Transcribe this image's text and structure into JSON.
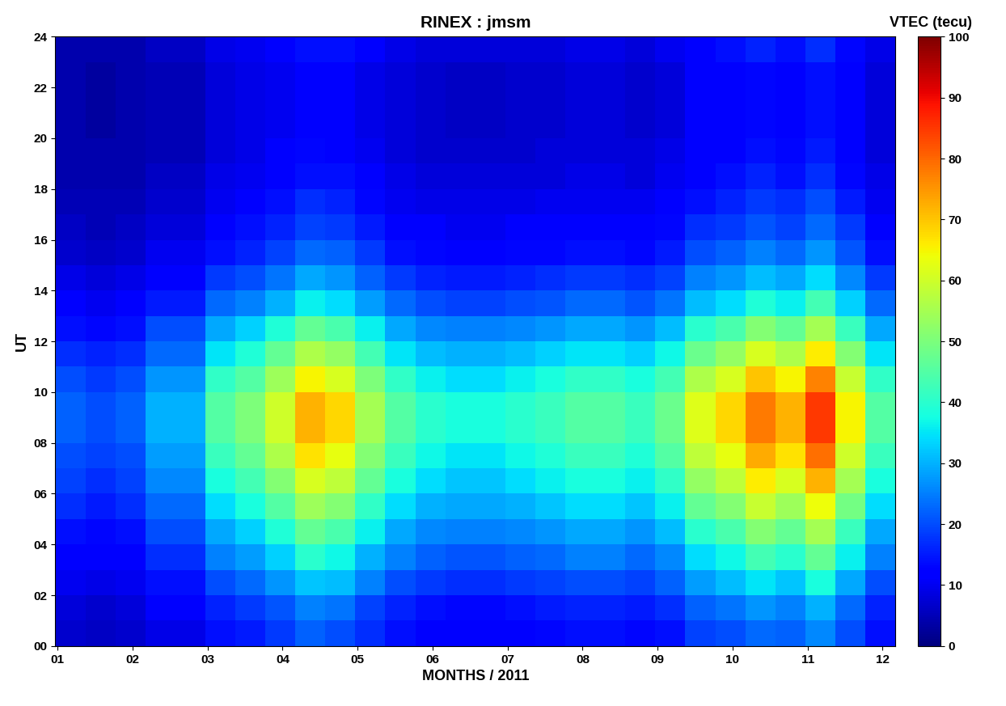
{
  "chart_data": {
    "type": "heatmap",
    "title": "RINEX : jmsm",
    "x_label": "MONTHS / 2011",
    "y_label": "UT",
    "color": "jet",
    "x_edges": [
      0.97,
      1.37,
      1.77,
      2.17,
      2.57,
      2.97,
      3.37,
      3.77,
      4.17,
      4.57,
      4.97,
      5.37,
      5.77,
      6.17,
      6.57,
      6.97,
      7.37,
      7.77,
      8.17,
      8.57,
      8.97,
      9.37,
      9.77,
      10.17,
      10.57,
      10.97,
      11.37,
      11.77,
      12.17
    ],
    "y_edges": [
      0,
      1,
      2,
      3,
      4,
      5,
      6,
      7,
      8,
      9,
      10,
      11,
      12,
      13,
      14,
      15,
      16,
      17,
      18,
      19,
      20,
      21,
      22,
      23,
      24
    ],
    "cells": [
      [
        7,
        8,
        10,
        12,
        14,
        17,
        19,
        20,
        22,
        22,
        20,
        17,
        14,
        11,
        9,
        7,
        6,
        5,
        4,
        4,
        4,
        4,
        4,
        4
      ],
      [
        6,
        7,
        9,
        11,
        13,
        15,
        17,
        19,
        20,
        20,
        18,
        16,
        13,
        10,
        8,
        6,
        5,
        5,
        4,
        4,
        3,
        3,
        3,
        4
      ],
      [
        7,
        8,
        10,
        12,
        14,
        17,
        19,
        20,
        22,
        22,
        20,
        17,
        14,
        11,
        9,
        7,
        6,
        5,
        4,
        4,
        4,
        4,
        4,
        4
      ],
      [
        9,
        11,
        14,
        17,
        20,
        23,
        26,
        28,
        30,
        30,
        27,
        23,
        20,
        15,
        12,
        10,
        8,
        7,
        6,
        5,
        5,
        5,
        5,
        6
      ],
      [
        9,
        11,
        14,
        17,
        20,
        23,
        26,
        28,
        30,
        30,
        27,
        23,
        20,
        15,
        12,
        10,
        8,
        7,
        6,
        5,
        5,
        5,
        5,
        6
      ],
      [
        14,
        16,
        20,
        25,
        29,
        34,
        38,
        42,
        45,
        45,
        41,
        35,
        29,
        23,
        18,
        14,
        12,
        10,
        9,
        8,
        8,
        8,
        8,
        9
      ],
      [
        15,
        18,
        23,
        28,
        33,
        38,
        43,
        47,
        50,
        50,
        45,
        39,
        33,
        25,
        20,
        16,
        14,
        12,
        10,
        9,
        9,
        9,
        9,
        10
      ],
      [
        18,
        21,
        27,
        33,
        39,
        45,
        51,
        56,
        60,
        60,
        54,
        47,
        39,
        30,
        24,
        19,
        16,
        14,
        12,
        11,
        10,
        10,
        10,
        12
      ],
      [
        22,
        25,
        32,
        40,
        47,
        54,
        61,
        67,
        72,
        72,
        65,
        56,
        47,
        36,
        29,
        23,
        19,
        17,
        14,
        13,
        12,
        12,
        12,
        14
      ],
      [
        20,
        24,
        31,
        37,
        44,
        51,
        58,
        63,
        68,
        68,
        61,
        53,
        44,
        34,
        27,
        22,
        18,
        16,
        14,
        12,
        12,
        12,
        12,
        14
      ],
      [
        17,
        19,
        25,
        30,
        36,
        41,
        47,
        51,
        55,
        55,
        50,
        43,
        36,
        28,
        22,
        18,
        15,
        13,
        11,
        10,
        9,
        9,
        9,
        11
      ],
      [
        14,
        16,
        20,
        25,
        29,
        34,
        38,
        42,
        45,
        45,
        41,
        35,
        29,
        23,
        18,
        14,
        12,
        10,
        9,
        8,
        8,
        8,
        8,
        9
      ],
      [
        12,
        14,
        18,
        22,
        26,
        30,
        34,
        37,
        40,
        40,
        36,
        31,
        26,
        20,
        16,
        13,
        11,
        9,
        8,
        7,
        7,
        7,
        7,
        8
      ],
      [
        11,
        13,
        17,
        21,
        25,
        29,
        32,
        35,
        38,
        38,
        34,
        30,
        25,
        19,
        15,
        12,
        10,
        9,
        8,
        7,
        6,
        6,
        6,
        8
      ],
      [
        11,
        13,
        17,
        21,
        25,
        29,
        32,
        35,
        38,
        38,
        34,
        30,
        25,
        19,
        15,
        12,
        10,
        9,
        8,
        7,
        6,
        6,
        6,
        8
      ],
      [
        12,
        14,
        18,
        22,
        26,
        30,
        34,
        37,
        40,
        40,
        36,
        31,
        26,
        20,
        16,
        13,
        11,
        9,
        8,
        7,
        7,
        7,
        7,
        8
      ],
      [
        13,
        15,
        19,
        23,
        27,
        32,
        36,
        39,
        42,
        42,
        38,
        33,
        27,
        21,
        17,
        13,
        11,
        10,
        8,
        8,
        7,
        7,
        7,
        8
      ],
      [
        14,
        16,
        20,
        25,
        29,
        34,
        38,
        42,
        45,
        45,
        41,
        35,
        29,
        23,
        18,
        14,
        12,
        10,
        9,
        8,
        8,
        8,
        8,
        9
      ],
      [
        14,
        16,
        20,
        25,
        29,
        34,
        38,
        42,
        45,
        45,
        41,
        35,
        29,
        23,
        18,
        14,
        12,
        10,
        9,
        8,
        8,
        8,
        8,
        9
      ],
      [
        13,
        15,
        19,
        23,
        27,
        32,
        36,
        39,
        42,
        42,
        38,
        33,
        27,
        21,
        17,
        13,
        11,
        10,
        8,
        8,
        7,
        7,
        7,
        8
      ],
      [
        14,
        17,
        22,
        26,
        31,
        36,
        41,
        45,
        48,
        48,
        43,
        37,
        31,
        24,
        19,
        15,
        13,
        11,
        10,
        9,
        8,
        8,
        8,
        10
      ],
      [
        19,
        22,
        28,
        34,
        40,
        47,
        53,
        58,
        62,
        62,
        56,
        48,
        40,
        31,
        25,
        20,
        17,
        14,
        12,
        11,
        11,
        11,
        11,
        12
      ],
      [
        20,
        24,
        31,
        37,
        44,
        51,
        58,
        63,
        68,
        68,
        61,
        53,
        44,
        34,
        27,
        22,
        18,
        16,
        14,
        12,
        12,
        12,
        12,
        14
      ],
      [
        23,
        27,
        35,
        43,
        51,
        59,
        66,
        73,
        78,
        78,
        70,
        61,
        51,
        39,
        31,
        25,
        21,
        18,
        16,
        14,
        13,
        13,
        13,
        16
      ],
      [
        22,
        25,
        32,
        40,
        47,
        54,
        61,
        67,
        72,
        72,
        65,
        56,
        47,
        36,
        29,
        23,
        19,
        17,
        14,
        13,
        12,
        12,
        12,
        14
      ],
      [
        26,
        30,
        38,
        47,
        55,
        64,
        72,
        79,
        85,
        85,
        77,
        66,
        55,
        43,
        34,
        27,
        23,
        20,
        17,
        15,
        14,
        14,
        14,
        17
      ],
      [
        20,
        23,
        29,
        36,
        42,
        49,
        55,
        60,
        65,
        65,
        59,
        51,
        42,
        33,
        26,
        21,
        18,
        15,
        13,
        12,
        11,
        11,
        11,
        13
      ],
      [
        14,
        16,
        20,
        25,
        29,
        34,
        38,
        42,
        45,
        45,
        41,
        35,
        29,
        23,
        18,
        14,
        12,
        10,
        9,
        8,
        8,
        8,
        8,
        9
      ]
    ],
    "xlim": [
      0.97,
      12.17
    ],
    "xticks": [
      {
        "value": 1,
        "label": "01"
      },
      {
        "value": 2,
        "label": "02"
      },
      {
        "value": 3,
        "label": "03"
      },
      {
        "value": 4,
        "label": "04"
      },
      {
        "value": 5,
        "label": "05"
      },
      {
        "value": 6,
        "label": "06"
      },
      {
        "value": 7,
        "label": "07"
      },
      {
        "value": 8,
        "label": "08"
      },
      {
        "value": 9,
        "label": "09"
      },
      {
        "value": 10,
        "label": "10"
      },
      {
        "value": 11,
        "label": "11"
      },
      {
        "value": 12,
        "label": "12"
      }
    ],
    "ylim": [
      0,
      24
    ],
    "yticks": [
      {
        "value": 0,
        "label": "00"
      },
      {
        "value": 2,
        "label": "02"
      },
      {
        "value": 4,
        "label": "04"
      },
      {
        "value": 6,
        "label": "06"
      },
      {
        "value": 8,
        "label": "08"
      },
      10,
      12,
      14,
      16,
      18,
      20,
      22,
      24
    ],
    "colorbar": {
      "label": "VTEC (tecu)",
      "range": [
        0,
        100
      ],
      "ticks": [
        0,
        10,
        20,
        30,
        40,
        50,
        60,
        70,
        80,
        90,
        100
      ]
    }
  }
}
